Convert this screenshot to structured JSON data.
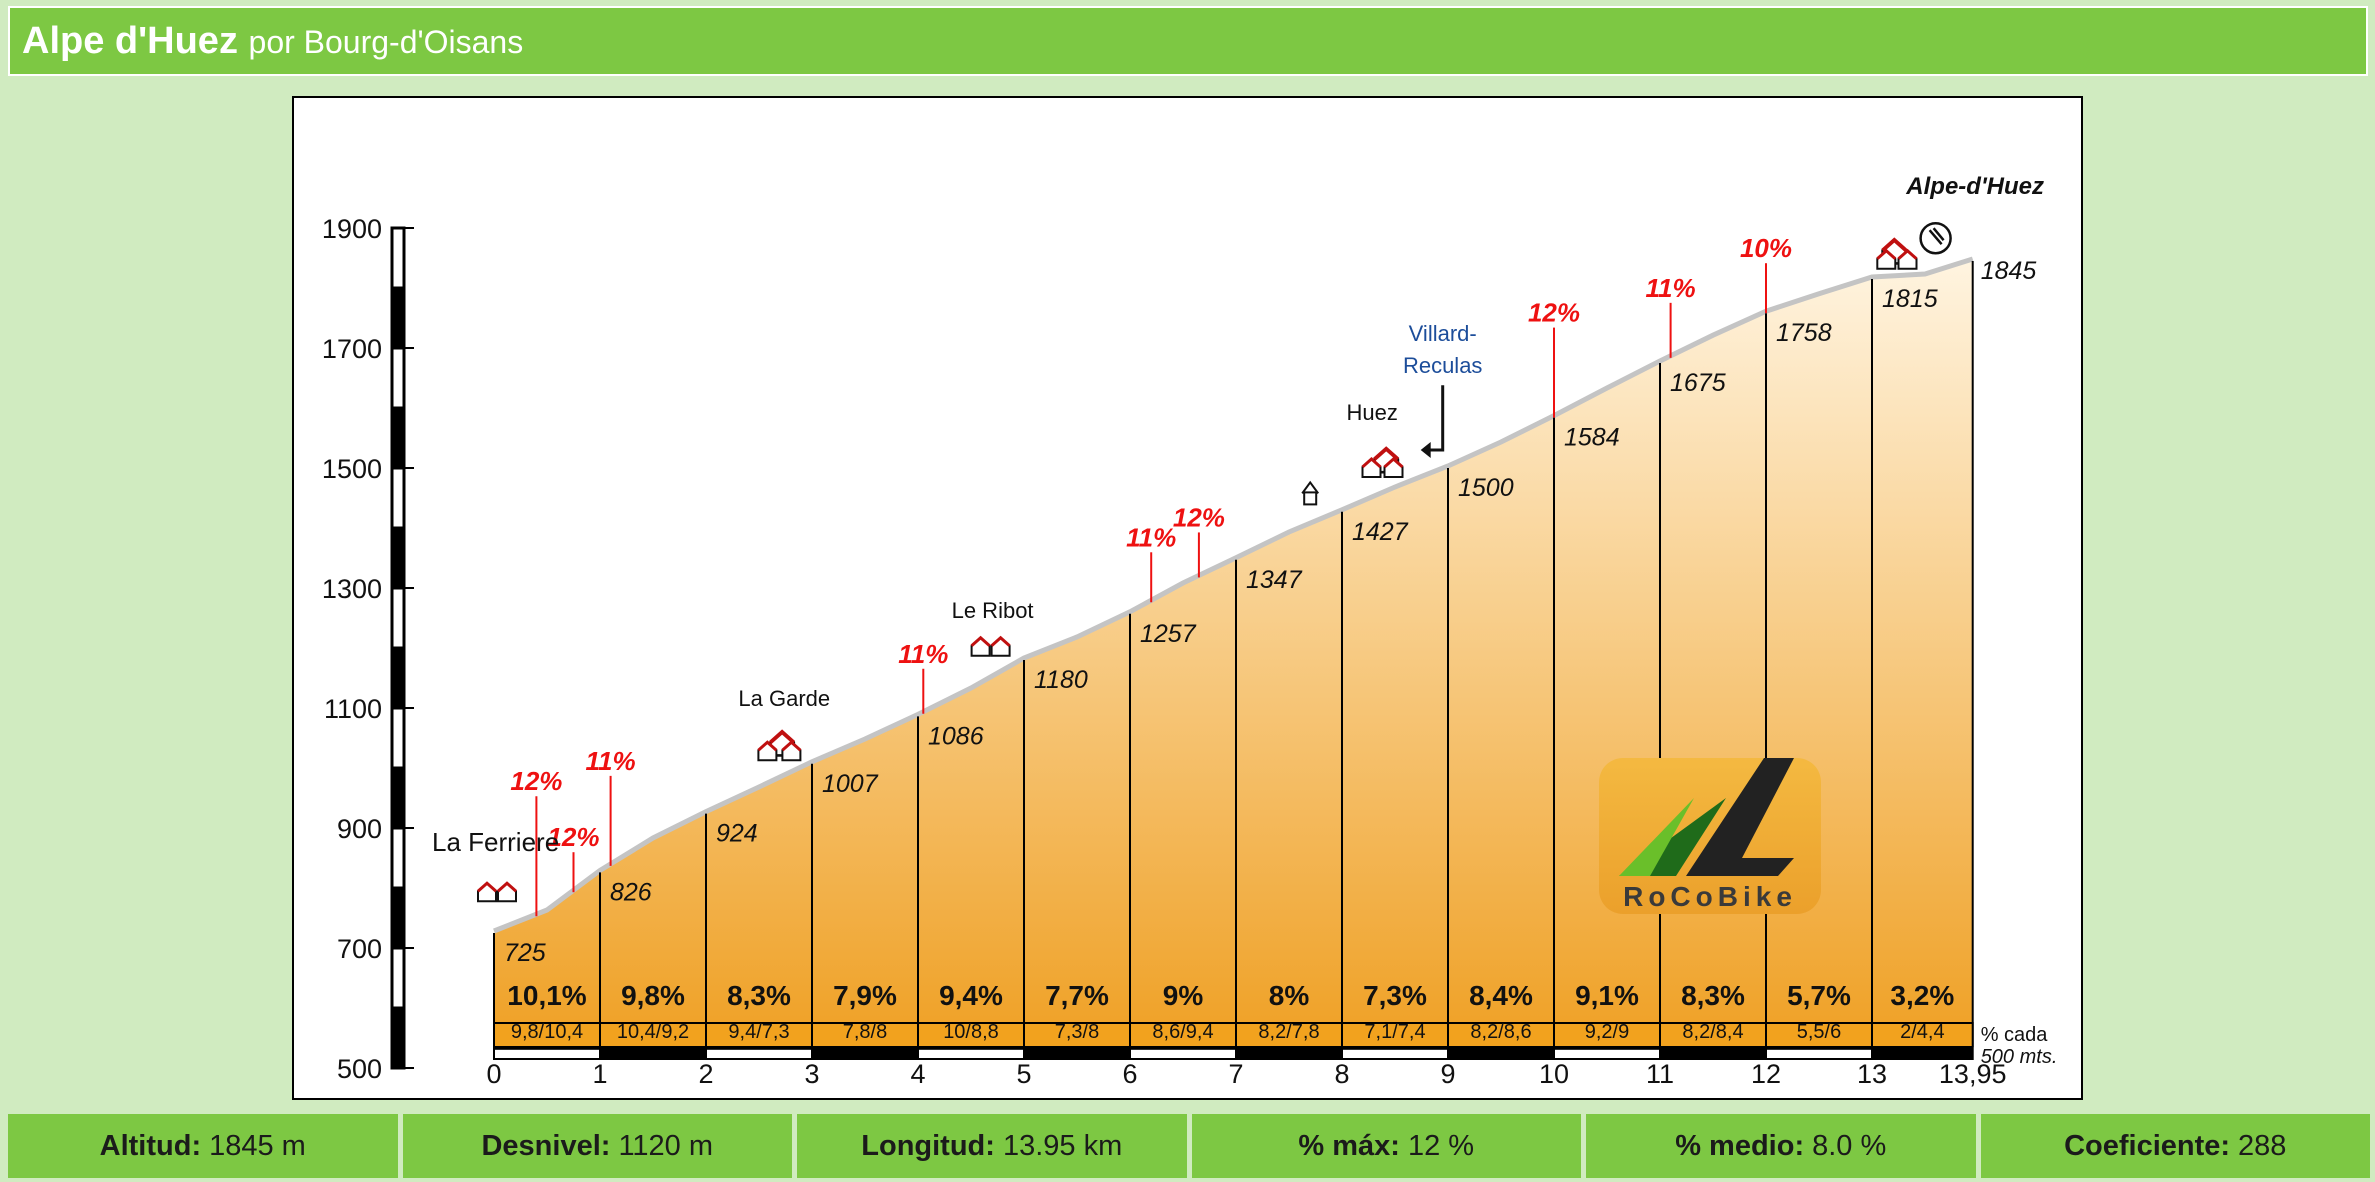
{
  "header": {
    "title": "Alpe d'Huez",
    "subtitle": "por Bourg-d'Oisans"
  },
  "stats": [
    {
      "label": "Altitud:",
      "value": "1845 m"
    },
    {
      "label": "Desnivel:",
      "value": "1120 m"
    },
    {
      "label": "Longitud:",
      "value": "13.95 km"
    },
    {
      "label": "% máx:",
      "value": "12 %"
    },
    {
      "label": "% medio:",
      "value": "8.0 %"
    },
    {
      "label": "Coeficiente:",
      "value": "288"
    }
  ],
  "chart_data": {
    "type": "area",
    "x_unit": "km",
    "y_unit": "m",
    "ylim": [
      500,
      1900
    ],
    "yticks": [
      "1900",
      "1700",
      "1500",
      "1300",
      "1100",
      "900",
      "700",
      "500"
    ],
    "ytick_values": [
      1900,
      1700,
      1500,
      1300,
      1100,
      900,
      700,
      500
    ],
    "xlim": [
      0,
      13.95
    ],
    "xticks": [
      "0",
      "1",
      "2",
      "3",
      "4",
      "5",
      "6",
      "7",
      "8",
      "9",
      "10",
      "11",
      "12",
      "13",
      "13,95"
    ],
    "xtick_values": [
      0,
      1,
      2,
      3,
      4,
      5,
      6,
      7,
      8,
      9,
      10,
      11,
      12,
      13,
      13.95
    ],
    "profile_points": [
      [
        0,
        725
      ],
      [
        0.5,
        760
      ],
      [
        1,
        826
      ],
      [
        1.5,
        880
      ],
      [
        2,
        924
      ],
      [
        2.5,
        965
      ],
      [
        3,
        1007
      ],
      [
        3.5,
        1045
      ],
      [
        4,
        1086
      ],
      [
        4.5,
        1130
      ],
      [
        5,
        1180
      ],
      [
        5.5,
        1215
      ],
      [
        6,
        1257
      ],
      [
        6.5,
        1305
      ],
      [
        7,
        1347
      ],
      [
        7.5,
        1390
      ],
      [
        8,
        1427
      ],
      [
        8.5,
        1465
      ],
      [
        9,
        1500
      ],
      [
        9.5,
        1540
      ],
      [
        10,
        1584
      ],
      [
        10.5,
        1630
      ],
      [
        11,
        1675
      ],
      [
        11.5,
        1718
      ],
      [
        12,
        1758
      ],
      [
        12.5,
        1787
      ],
      [
        13,
        1815
      ],
      [
        13.5,
        1820
      ],
      [
        13.95,
        1845
      ]
    ],
    "elevation_labels": [
      {
        "x": 0,
        "label": "725"
      },
      {
        "x": 1,
        "label": "826"
      },
      {
        "x": 2,
        "label": "924"
      },
      {
        "x": 3,
        "label": "1007"
      },
      {
        "x": 4,
        "label": "1086"
      },
      {
        "x": 5,
        "label": "1180"
      },
      {
        "x": 6,
        "label": "1257"
      },
      {
        "x": 7,
        "label": "1347"
      },
      {
        "x": 8,
        "label": "1427"
      },
      {
        "x": 9,
        "label": "1500"
      },
      {
        "x": 10,
        "label": "1584"
      },
      {
        "x": 11,
        "label": "1675"
      },
      {
        "x": 12,
        "label": "1758"
      },
      {
        "x": 13,
        "label": "1815"
      },
      {
        "x": 13.95,
        "label": "1845"
      }
    ],
    "km_gradients": [
      "10,1%",
      "9,8%",
      "8,3%",
      "7,9%",
      "9,4%",
      "7,7%",
      "9%",
      "8%",
      "7,3%",
      "8,4%",
      "9,1%",
      "8,3%",
      "5,7%",
      "3,2%"
    ],
    "halfkm_gradients": [
      "9,8/10,4",
      "10,4/9,2",
      "9,4/7,3",
      "7,8/8",
      "10/8,8",
      "7,3/8",
      "8,6/9,4",
      "8,2/7,8",
      "7,1/7,4",
      "8,2/8,6",
      "9,2/9",
      "8,2/8,4",
      "5,5/6",
      "2/4,4"
    ],
    "halfkm_legend": [
      "% cada",
      "500 mts."
    ],
    "max_gradient_markers": [
      {
        "x": 0.4,
        "label": "12%"
      },
      {
        "x": 0.75,
        "label": "12%"
      },
      {
        "x": 1.1,
        "label": "11%"
      },
      {
        "x": 4.05,
        "label": "11%"
      },
      {
        "x": 6.2,
        "label": "11%"
      },
      {
        "x": 6.65,
        "label": "12%"
      },
      {
        "x": 10,
        "label": "12%"
      },
      {
        "x": 11.1,
        "label": "11%"
      },
      {
        "x": 12,
        "label": "10%"
      }
    ],
    "places": [
      {
        "name": "La Ferriere",
        "x": 0
      },
      {
        "name": "La Garde",
        "x": 2.4
      },
      {
        "name": "Le Ribot",
        "x": 4.6
      },
      {
        "name": "Huez",
        "x": 8.25
      },
      {
        "name": "Villard-Reculas",
        "x": 8.95
      },
      {
        "name": "Alpe-d'Huez",
        "x": 13.4
      }
    ],
    "summit_label": "Alpe-d'Huez",
    "villard_label": [
      "Villard-",
      "Reculas"
    ],
    "watermark": "RoCoBike",
    "colors": {
      "fill_top": "#fff4e0",
      "fill_bottom": "#efa024",
      "road": "#c4c4c4",
      "marker": "#ee1111",
      "villard": "#1c4d9a",
      "stats_bg": "#7dc843"
    }
  }
}
